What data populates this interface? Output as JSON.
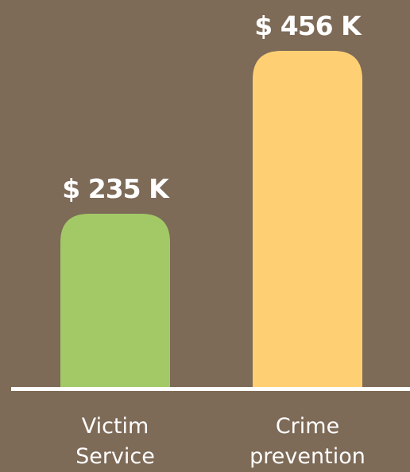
{
  "chart_data": {
    "type": "bar",
    "categories": [
      "Victim Service",
      "Crime prevention"
    ],
    "values": [
      235,
      456
    ],
    "value_labels": [
      "$ 235 K",
      "$ 456 K"
    ],
    "colors": [
      "#a3c966",
      "#ffd073"
    ]
  }
}
